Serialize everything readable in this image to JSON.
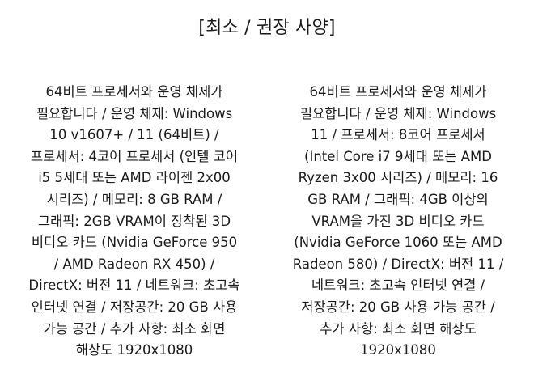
{
  "page": {
    "title": "[최소 / 권장 사양]"
  },
  "minimum": {
    "lines": [
      "64비트 프로세서와 운영 체제가",
      "필요합니다 / 운영 체제: Windows",
      "10 v1607+ / 11 (64비트) /",
      "프로세서: 4코어 프로세서 (인텔 코어",
      "i5 5세대 또는 AMD 라이젠 2x00",
      "시리즈) / 메모리: 8 GB RAM /",
      "그래픽: 2GB VRAM이 장착된 3D",
      "비디오 카드 (Nvidia GeForce 950",
      "/ AMD Radeon RX 450) /",
      "DirectX: 버전 11 / 네트워크: 초고속",
      "인터넷 연결 / 저장공간: 20 GB 사용",
      "가능 공간 / 추가 사항: 최소 화면",
      "해상도 1920x1080"
    ]
  },
  "recommended": {
    "lines": [
      "64비트 프로세서와 운영 체제가",
      "필요합니다 / 운영 체제: Windows",
      "11 / 프로세서: 8코어 프로세서",
      "(Intel Core i7 9세대 또는 AMD",
      "Ryzen 3x00 시리즈) / 메모리: 16",
      "GB RAM / 그래픽: 4GB 이상의",
      "VRAM을 가진 3D 비디오 카드",
      "(Nvidia GeForce 1060 또는 AMD",
      "Radeon 580) / DirectX: 버전 11 /",
      "네트워크: 초고속 인터넷 연결 /",
      "저장공간: 20 GB 사용 가능 공간 /",
      "추가 사항: 최소 화면 해상도",
      "1920x1080"
    ]
  }
}
